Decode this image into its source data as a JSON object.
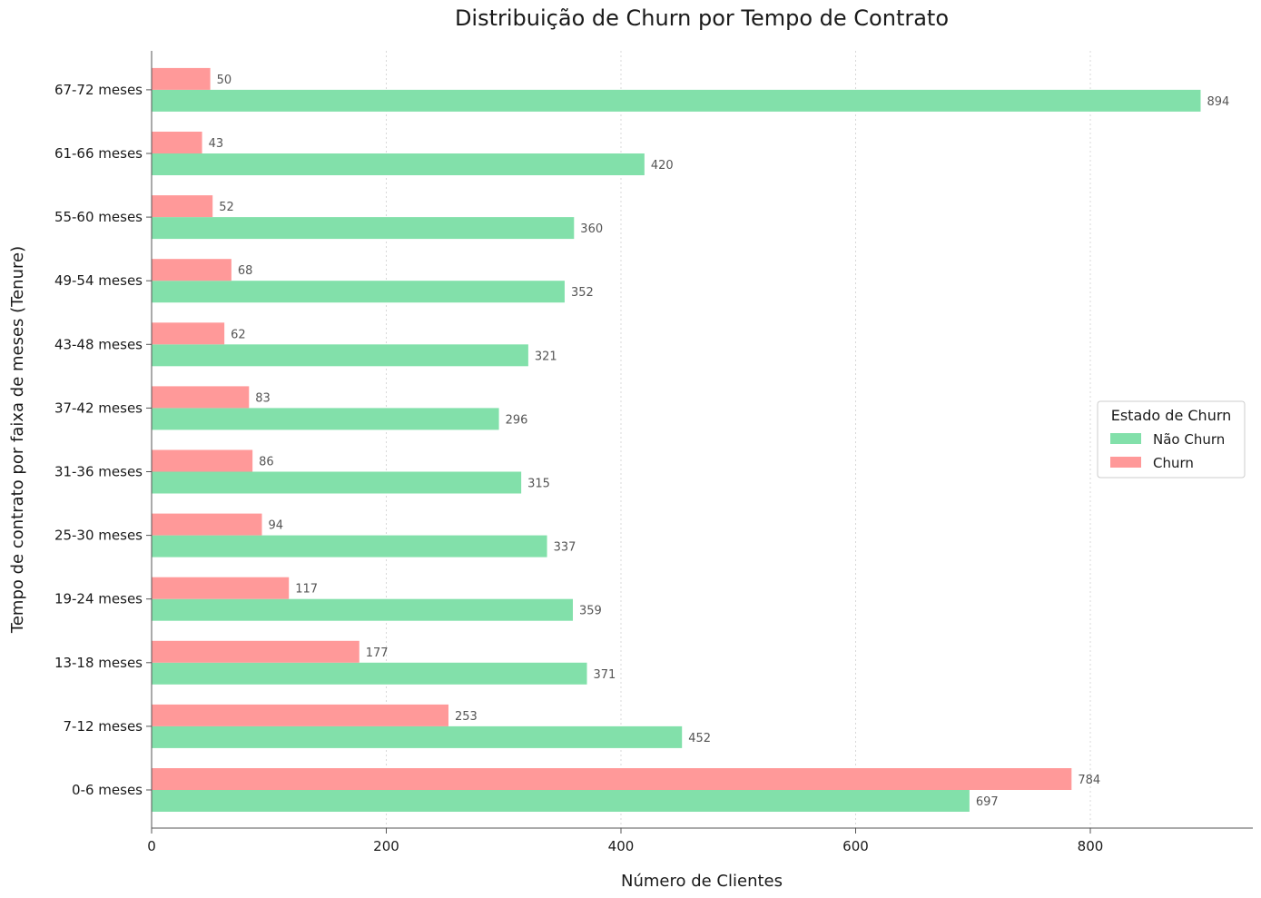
{
  "chart_data": {
    "type": "bar",
    "orientation": "horizontal",
    "title": "Distribuição de Churn por Tempo de Contrato",
    "xlabel": "Número de Clientes",
    "ylabel": "Tempo de contrato por faixa de meses (Tenure)",
    "xlim": [
      0,
      940
    ],
    "xticks": [
      0,
      200,
      400,
      600,
      800
    ],
    "grid": "vertical-dashed",
    "legend_position": "right",
    "legend_title": "Estado de Churn",
    "categories": [
      "0-6 meses",
      "7-12 meses",
      "13-18 meses",
      "19-24 meses",
      "25-30 meses",
      "31-36 meses",
      "37-42 meses",
      "43-48 meses",
      "49-54 meses",
      "55-60 meses",
      "61-66 meses",
      "67-72 meses"
    ],
    "series": [
      {
        "name": "Não Churn",
        "color": "#82e0aa",
        "values": [
          697,
          452,
          371,
          359,
          337,
          315,
          296,
          321,
          352,
          360,
          420,
          894
        ]
      },
      {
        "name": "Churn",
        "color": "#ff9999",
        "values": [
          784,
          253,
          177,
          117,
          94,
          86,
          83,
          62,
          68,
          52,
          43,
          50
        ]
      }
    ]
  }
}
